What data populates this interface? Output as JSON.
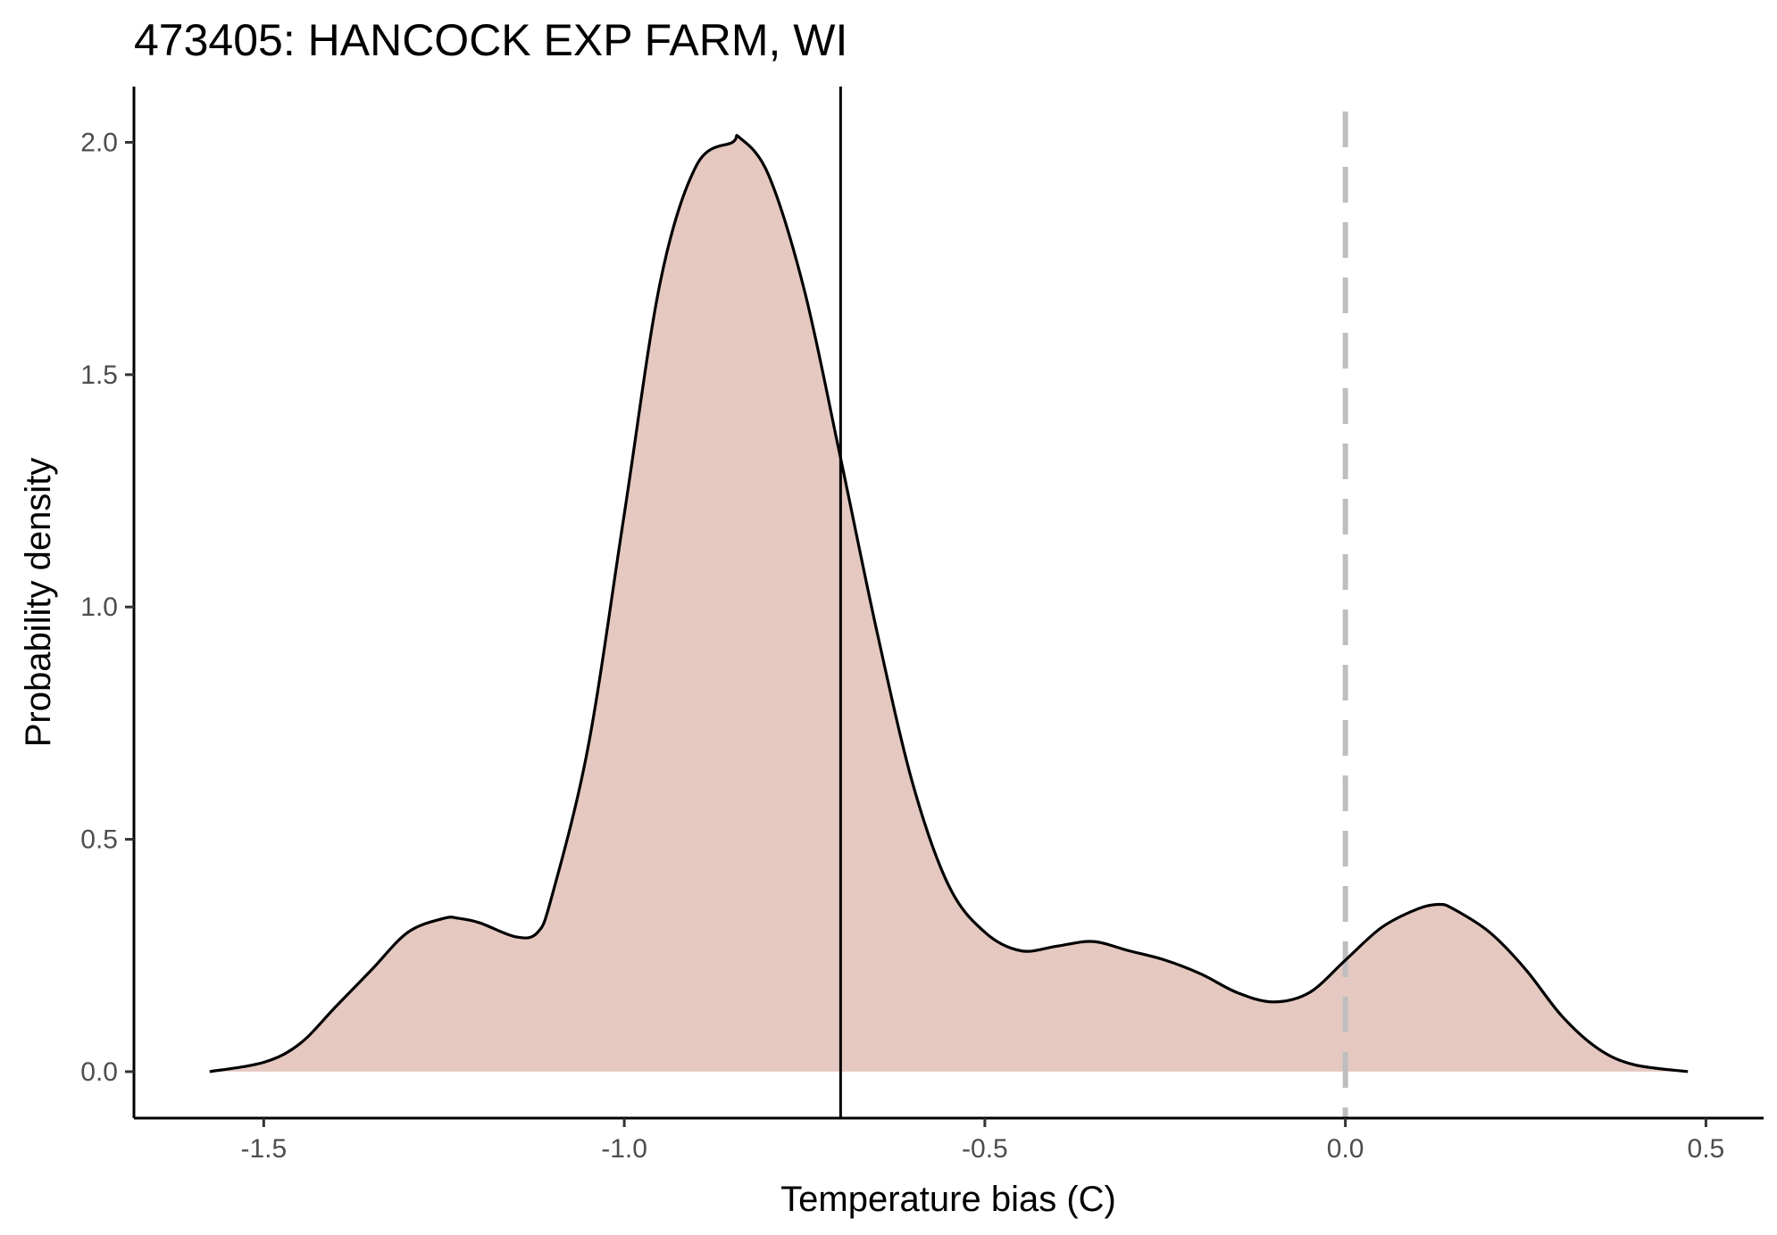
{
  "chart_data": {
    "type": "area",
    "title": "473405: HANCOCK EXP FARM, WI",
    "xlabel": "Temperature bias (C)",
    "ylabel": "Probability density",
    "xlim": [
      -1.68,
      0.58
    ],
    "ylim": [
      -0.1,
      2.12
    ],
    "x_ticks": [
      -1.5,
      -1.0,
      -0.5,
      0.0,
      0.5
    ],
    "x_tick_labels": [
      "-1.5",
      "-1.0",
      "-0.5",
      "0.0",
      "0.5"
    ],
    "y_ticks": [
      0.0,
      0.5,
      1.0,
      1.5,
      2.0
    ],
    "y_tick_labels": [
      "0.0",
      "0.5",
      "1.0",
      "1.5",
      "2.0"
    ],
    "grid": false,
    "fill_color": "#e5c9c1",
    "line_color": "#000000",
    "reference_lines": [
      {
        "x": -0.7,
        "style": "solid",
        "color": "#000000"
      },
      {
        "x": 0.0,
        "style": "dashed",
        "color": "#bebebe"
      }
    ],
    "series": [
      {
        "x": [
          -1.575,
          -1.5,
          -1.45,
          -1.4,
          -1.35,
          -1.3,
          -1.25,
          -1.23,
          -1.2,
          -1.15,
          -1.12,
          -1.1,
          -1.05,
          -1.0,
          -0.95,
          -0.9,
          -0.85,
          -0.84,
          -0.8,
          -0.75,
          -0.7,
          -0.65,
          -0.6,
          -0.55,
          -0.5,
          -0.45,
          -0.4,
          -0.35,
          -0.3,
          -0.25,
          -0.2,
          -0.15,
          -0.1,
          -0.05,
          0.0,
          0.05,
          0.1,
          0.13,
          0.15,
          0.2,
          0.25,
          0.3,
          0.35,
          0.4,
          0.475
        ],
        "y": [
          0.0,
          0.02,
          0.06,
          0.14,
          0.22,
          0.3,
          0.33,
          0.33,
          0.32,
          0.29,
          0.3,
          0.38,
          0.7,
          1.2,
          1.7,
          1.95,
          2.0,
          2.01,
          1.93,
          1.68,
          1.32,
          0.95,
          0.62,
          0.4,
          0.3,
          0.26,
          0.27,
          0.28,
          0.26,
          0.24,
          0.21,
          0.17,
          0.15,
          0.17,
          0.24,
          0.31,
          0.35,
          0.36,
          0.35,
          0.3,
          0.22,
          0.12,
          0.05,
          0.015,
          0.0
        ]
      }
    ]
  }
}
